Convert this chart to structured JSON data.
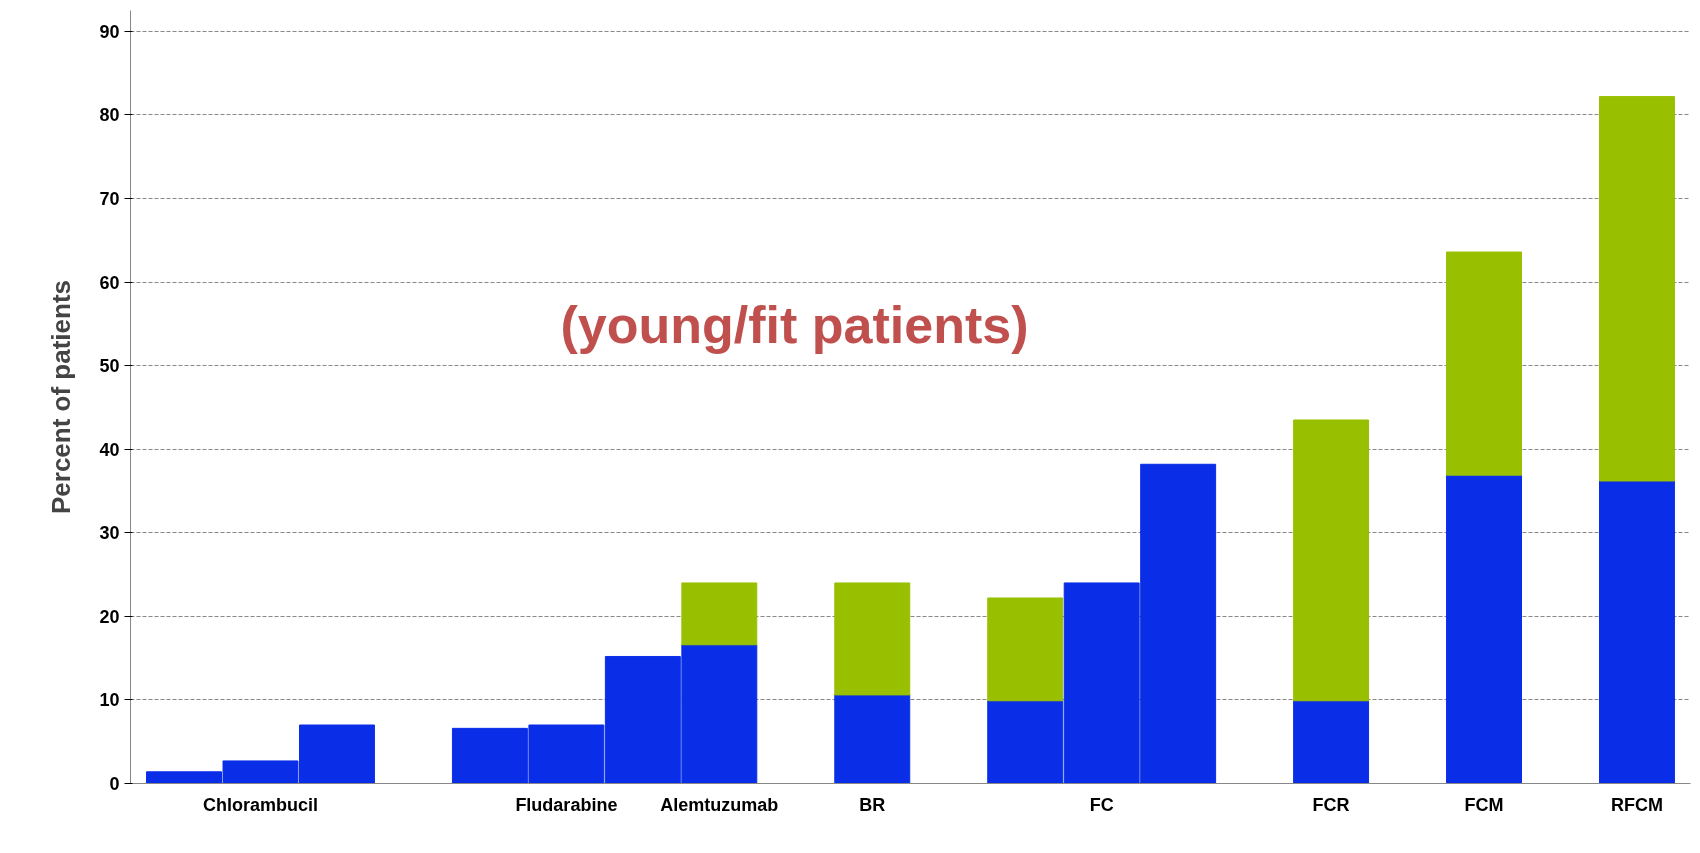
{
  "chart_data": {
    "type": "bar",
    "ylabel": "Percent of patients",
    "stacked": true,
    "categories": [
      null,
      "Chlorambucil",
      null,
      null,
      null,
      "Fludarabine",
      null,
      "Alemtuzumab",
      null,
      "BR",
      null,
      null,
      "FC",
      null,
      null,
      "FCR",
      null,
      "FCM",
      null,
      "RFCM"
    ],
    "series": [
      {
        "color": "#0a2ee8",
        "values": [
          1.4,
          2.7,
          7.0,
          null,
          6.6,
          7.0,
          15.2,
          16.6,
          null,
          10.6,
          null,
          9.9,
          24.0,
          38.2,
          null,
          9.9,
          null,
          36.9,
          null,
          36.2
        ]
      },
      {
        "color": "#98c000",
        "values": [
          null,
          null,
          null,
          null,
          null,
          null,
          null,
          7.4,
          null,
          13.4,
          null,
          12.3,
          null,
          null,
          null,
          33.6,
          null,
          26.7,
          null,
          46.0
        ]
      }
    ],
    "ylim": [
      0,
      92.5
    ],
    "yticks": [
      0,
      10,
      20,
      30,
      40,
      50,
      60,
      70,
      80,
      90
    ],
    "grid": "y",
    "annotations": [
      "(young/fit patients)"
    ]
  }
}
